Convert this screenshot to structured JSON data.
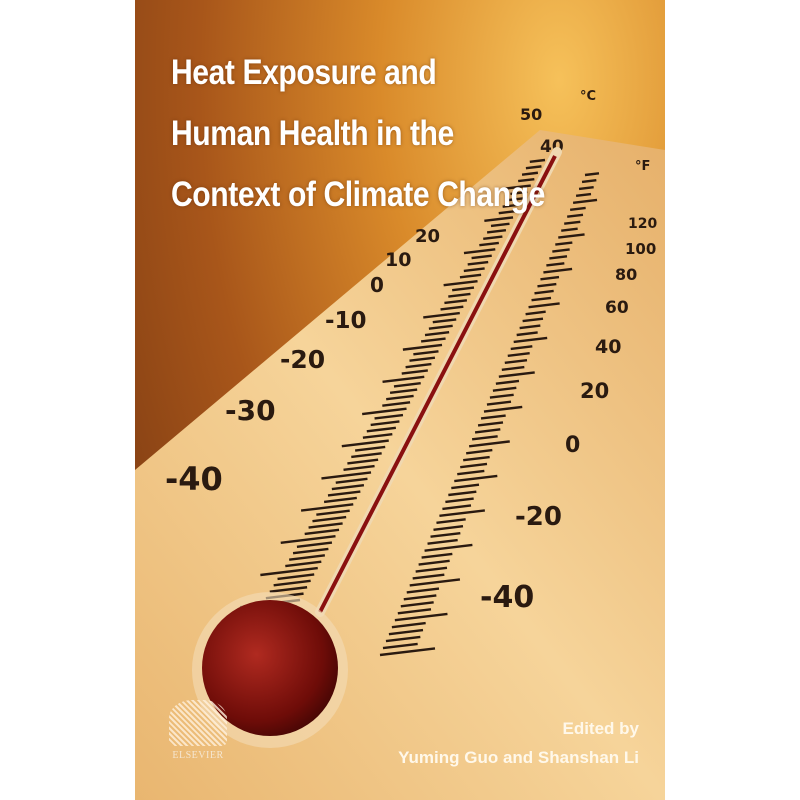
{
  "book": {
    "title_lines": [
      "Heat Exposure and",
      "Human Health in the",
      "Context of Climate Change"
    ],
    "edited_by": "Edited by",
    "editors": "Yuming Guo and Shanshan Li",
    "publisher": "ELSEVIER"
  },
  "thermometer": {
    "celsius_unit": "°C",
    "fahrenheit_unit": "°F",
    "celsius_labels": [
      "50",
      "40",
      "20",
      "10",
      "0",
      "-10",
      "-20",
      "-30",
      "-40"
    ],
    "fahrenheit_labels": [
      "120",
      "100",
      "80",
      "60",
      "40",
      "20",
      "0",
      "-20",
      "-40"
    ],
    "liquid_color": "#8a1010"
  }
}
